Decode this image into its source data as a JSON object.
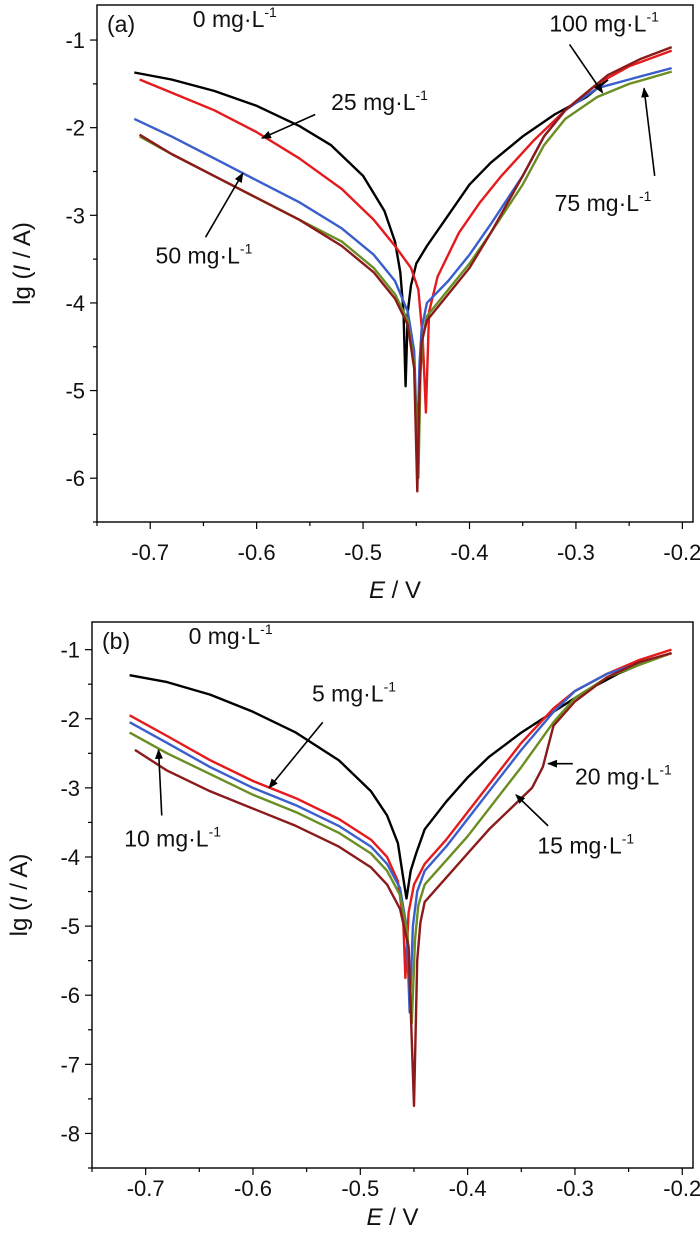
{
  "chart_data": [
    {
      "type": "line",
      "panel_label": "(a)",
      "xlabel_italic": "E",
      "xlabel_rest": " / V",
      "ylabel_pre": "lg (",
      "ylabel_italic": "I",
      "ylabel_post": " / A)",
      "xlim": [
        -0.75,
        -0.19
      ],
      "ylim": [
        -6.5,
        -0.6
      ],
      "xticks": [
        -0.7,
        -0.6,
        -0.5,
        -0.4,
        -0.3,
        -0.2
      ],
      "xtick_labels": [
        "-0.7",
        "-0.6",
        "-0.5",
        "-0.4",
        "-0.3",
        "-0.2"
      ],
      "yticks": [
        -1,
        -2,
        -3,
        -4,
        -5,
        -6
      ],
      "ytick_labels": [
        "-1",
        "-2",
        "-3",
        "-4",
        "-5",
        "-6"
      ],
      "series": [
        {
          "name": "0 mg·L-1",
          "color": "#000000",
          "x": [
            -0.715,
            -0.68,
            -0.64,
            -0.6,
            -0.56,
            -0.53,
            -0.5,
            -0.48,
            -0.47,
            -0.465,
            -0.462,
            -0.46,
            -0.458,
            -0.455,
            -0.45,
            -0.44,
            -0.42,
            -0.4,
            -0.38,
            -0.35,
            -0.32,
            -0.29,
            -0.27
          ],
          "y": [
            -1.37,
            -1.45,
            -1.58,
            -1.75,
            -1.98,
            -2.2,
            -2.55,
            -2.95,
            -3.3,
            -3.65,
            -4.1,
            -4.95,
            -4.1,
            -3.8,
            -3.55,
            -3.35,
            -3.0,
            -2.65,
            -2.4,
            -2.1,
            -1.85,
            -1.65,
            -1.45
          ]
        },
        {
          "name": "25 mg·L-1",
          "color": "#e41a1c",
          "x": [
            -0.71,
            -0.68,
            -0.64,
            -0.6,
            -0.56,
            -0.52,
            -0.49,
            -0.47,
            -0.455,
            -0.448,
            -0.444,
            -0.441,
            -0.438,
            -0.43,
            -0.41,
            -0.39,
            -0.37,
            -0.34,
            -0.31,
            -0.28,
            -0.25,
            -0.21
          ],
          "y": [
            -1.45,
            -1.6,
            -1.8,
            -2.05,
            -2.35,
            -2.7,
            -3.05,
            -3.35,
            -3.6,
            -3.85,
            -4.4,
            -5.25,
            -4.1,
            -3.7,
            -3.2,
            -2.85,
            -2.55,
            -2.15,
            -1.8,
            -1.5,
            -1.3,
            -1.12
          ]
        },
        {
          "name": "50 mg·L-1",
          "color": "#3a5fcd",
          "x": [
            -0.715,
            -0.68,
            -0.64,
            -0.6,
            -0.56,
            -0.52,
            -0.49,
            -0.47,
            -0.458,
            -0.452,
            -0.449,
            -0.447,
            -0.445,
            -0.44,
            -0.42,
            -0.4,
            -0.38,
            -0.35,
            -0.33,
            -0.31,
            -0.28,
            -0.25,
            -0.21
          ],
          "y": [
            -1.9,
            -2.1,
            -2.35,
            -2.6,
            -2.85,
            -3.15,
            -3.45,
            -3.75,
            -4.1,
            -4.55,
            -5.6,
            -4.7,
            -4.3,
            -4.0,
            -3.75,
            -3.45,
            -3.1,
            -2.55,
            -2.1,
            -1.8,
            -1.55,
            -1.45,
            -1.32
          ]
        },
        {
          "name": "75 mg·L-1",
          "color": "#6b8e23",
          "x": [
            -0.71,
            -0.68,
            -0.64,
            -0.6,
            -0.56,
            -0.52,
            -0.49,
            -0.47,
            -0.458,
            -0.452,
            -0.448,
            -0.446,
            -0.444,
            -0.44,
            -0.42,
            -0.4,
            -0.38,
            -0.35,
            -0.33,
            -0.31,
            -0.28,
            -0.25,
            -0.21
          ],
          "y": [
            -2.1,
            -2.3,
            -2.55,
            -2.8,
            -3.05,
            -3.3,
            -3.6,
            -3.9,
            -4.2,
            -4.7,
            -6.0,
            -4.8,
            -4.4,
            -4.15,
            -3.85,
            -3.55,
            -3.2,
            -2.65,
            -2.2,
            -1.9,
            -1.65,
            -1.5,
            -1.36
          ]
        },
        {
          "name": "100 mg·L-1",
          "color": "#8b1a1a",
          "x": [
            -0.71,
            -0.68,
            -0.64,
            -0.6,
            -0.56,
            -0.52,
            -0.49,
            -0.47,
            -0.458,
            -0.452,
            -0.449,
            -0.447,
            -0.445,
            -0.44,
            -0.42,
            -0.4,
            -0.38,
            -0.35,
            -0.33,
            -0.31,
            -0.29,
            -0.27,
            -0.24,
            -0.21
          ],
          "y": [
            -2.08,
            -2.3,
            -2.55,
            -2.8,
            -3.05,
            -3.35,
            -3.65,
            -3.95,
            -4.25,
            -4.75,
            -6.15,
            -5.0,
            -4.45,
            -4.2,
            -3.9,
            -3.6,
            -3.2,
            -2.55,
            -2.1,
            -1.8,
            -1.6,
            -1.4,
            -1.22,
            -1.08
          ]
        }
      ],
      "annotations": [
        {
          "base": "0 mg·L",
          "sup": "-1",
          "text_x": -0.66,
          "text_y": -0.85,
          "arrow": null
        },
        {
          "base": "25 mg·L",
          "sup": "-1",
          "text_x": -0.53,
          "text_y": -1.8,
          "arrow": {
            "from": [
              -0.545,
              -1.85
            ],
            "to": [
              -0.595,
              -2.12
            ]
          }
        },
        {
          "base": "50 mg·L",
          "sup": "-1",
          "text_x": -0.695,
          "text_y": -3.55,
          "arrow": {
            "from": [
              -0.648,
              -3.25
            ],
            "to": [
              -0.613,
              -2.52
            ]
          }
        },
        {
          "base": "100 mg·L",
          "sup": "-1",
          "text_x": -0.325,
          "text_y": -0.9,
          "arrow": {
            "from": [
              -0.306,
              -1.05
            ],
            "to": [
              -0.275,
              -1.6
            ]
          }
        },
        {
          "base": "75 mg·L",
          "sup": "-1",
          "text_x": -0.32,
          "text_y": -2.95,
          "arrow": {
            "from": [
              -0.226,
              -2.55
            ],
            "to": [
              -0.236,
              -1.55
            ]
          }
        }
      ]
    },
    {
      "type": "line",
      "panel_label": "(b)",
      "xlabel_italic": "E",
      "xlabel_rest": " / V",
      "ylabel_pre": "lg (",
      "ylabel_italic": "I",
      "ylabel_post": " / A)",
      "xlim": [
        -0.75,
        -0.19
      ],
      "ylim": [
        -8.5,
        -0.6
      ],
      "xticks": [
        -0.7,
        -0.6,
        -0.5,
        -0.4,
        -0.3,
        -0.2
      ],
      "xtick_labels": [
        "-0.7",
        "-0.6",
        "-0.5",
        "-0.4",
        "-0.3",
        "-0.2"
      ],
      "yticks": [
        -1,
        -2,
        -3,
        -4,
        -5,
        -6,
        -7,
        -8
      ],
      "ytick_labels": [
        "-1",
        "-2",
        "-3",
        "-4",
        "-5",
        "-6",
        "-7",
        "-8"
      ],
      "series": [
        {
          "name": "0 mg·L-1",
          "color": "#000000",
          "x": [
            -0.715,
            -0.68,
            -0.64,
            -0.6,
            -0.56,
            -0.52,
            -0.49,
            -0.475,
            -0.465,
            -0.46,
            -0.457,
            -0.453,
            -0.448,
            -0.44,
            -0.42,
            -0.4,
            -0.38,
            -0.35,
            -0.32,
            -0.29,
            -0.26,
            -0.23,
            -0.21
          ],
          "y": [
            -1.37,
            -1.47,
            -1.65,
            -1.9,
            -2.2,
            -2.6,
            -3.05,
            -3.4,
            -3.8,
            -4.3,
            -4.6,
            -4.2,
            -3.95,
            -3.6,
            -3.2,
            -2.85,
            -2.55,
            -2.2,
            -1.9,
            -1.6,
            -1.35,
            -1.15,
            -1.05
          ]
        },
        {
          "name": "5 mg·L-1",
          "color": "#e41a1c",
          "x": [
            -0.715,
            -0.68,
            -0.64,
            -0.6,
            -0.56,
            -0.52,
            -0.49,
            -0.475,
            -0.465,
            -0.46,
            -0.458,
            -0.455,
            -0.45,
            -0.44,
            -0.42,
            -0.4,
            -0.38,
            -0.35,
            -0.32,
            -0.3,
            -0.27,
            -0.24,
            -0.21
          ],
          "y": [
            -1.95,
            -2.25,
            -2.6,
            -2.9,
            -3.15,
            -3.45,
            -3.75,
            -4.0,
            -4.35,
            -4.9,
            -5.75,
            -4.8,
            -4.4,
            -4.1,
            -3.75,
            -3.35,
            -2.95,
            -2.35,
            -1.85,
            -1.6,
            -1.35,
            -1.15,
            -1.0
          ]
        },
        {
          "name": "10 mg·L-1",
          "color": "#3a5fcd",
          "x": [
            -0.715,
            -0.68,
            -0.64,
            -0.6,
            -0.56,
            -0.52,
            -0.49,
            -0.475,
            -0.463,
            -0.457,
            -0.454,
            -0.451,
            -0.447,
            -0.44,
            -0.42,
            -0.4,
            -0.38,
            -0.35,
            -0.32,
            -0.3,
            -0.27,
            -0.24,
            -0.21
          ],
          "y": [
            -2.05,
            -2.35,
            -2.7,
            -3.0,
            -3.25,
            -3.55,
            -3.85,
            -4.1,
            -4.45,
            -5.0,
            -6.25,
            -5.0,
            -4.5,
            -4.2,
            -3.85,
            -3.45,
            -3.05,
            -2.45,
            -1.9,
            -1.6,
            -1.35,
            -1.2,
            -1.05
          ]
        },
        {
          "name": "15 mg·L-1",
          "color": "#6b8e23",
          "x": [
            -0.715,
            -0.68,
            -0.64,
            -0.6,
            -0.56,
            -0.52,
            -0.49,
            -0.475,
            -0.463,
            -0.456,
            -0.452,
            -0.449,
            -0.446,
            -0.44,
            -0.42,
            -0.4,
            -0.38,
            -0.35,
            -0.32,
            -0.3,
            -0.27,
            -0.24,
            -0.21
          ],
          "y": [
            -2.2,
            -2.5,
            -2.8,
            -3.1,
            -3.35,
            -3.65,
            -3.95,
            -4.2,
            -4.55,
            -5.1,
            -6.4,
            -5.2,
            -4.7,
            -4.4,
            -4.05,
            -3.7,
            -3.3,
            -2.7,
            -2.05,
            -1.7,
            -1.4,
            -1.22,
            -1.05
          ]
        },
        {
          "name": "20 mg·L-1",
          "color": "#8b1a1a",
          "x": [
            -0.71,
            -0.68,
            -0.64,
            -0.6,
            -0.56,
            -0.52,
            -0.49,
            -0.475,
            -0.463,
            -0.455,
            -0.45,
            -0.447,
            -0.444,
            -0.44,
            -0.42,
            -0.4,
            -0.38,
            -0.36,
            -0.34,
            -0.33,
            -0.32,
            -0.3,
            -0.27,
            -0.24,
            -0.21
          ],
          "y": [
            -2.45,
            -2.75,
            -3.05,
            -3.3,
            -3.55,
            -3.85,
            -4.15,
            -4.4,
            -4.75,
            -5.3,
            -7.6,
            -5.5,
            -4.95,
            -4.65,
            -4.3,
            -3.95,
            -3.6,
            -3.3,
            -3.0,
            -2.7,
            -2.1,
            -1.75,
            -1.4,
            -1.18,
            -1.05
          ]
        }
      ],
      "annotations": [
        {
          "base": "0 mg·L",
          "sup": "-1",
          "text_x": -0.66,
          "text_y": -0.92,
          "arrow": null
        },
        {
          "base": "5 mg·L",
          "sup": "-1",
          "text_x": -0.545,
          "text_y": -1.75,
          "arrow": {
            "from": [
              -0.535,
              -2.05
            ],
            "to": [
              -0.585,
              -3.0
            ]
          }
        },
        {
          "base": "10 mg·L",
          "sup": "-1",
          "text_x": -0.72,
          "text_y": -3.85,
          "arrow": {
            "from": [
              -0.685,
              -3.4
            ],
            "to": [
              -0.688,
              -2.45
            ]
          }
        },
        {
          "base": "20 mg·L",
          "sup": "-1",
          "text_x": -0.3,
          "text_y": -2.95,
          "arrow": {
            "from": [
              -0.302,
              -2.65
            ],
            "to": [
              -0.325,
              -2.65
            ]
          }
        },
        {
          "base": "15 mg·L",
          "sup": "-1",
          "text_x": -0.335,
          "text_y": -3.95,
          "arrow": {
            "from": [
              -0.325,
              -3.55
            ],
            "to": [
              -0.355,
              -3.1
            ]
          }
        }
      ]
    }
  ]
}
